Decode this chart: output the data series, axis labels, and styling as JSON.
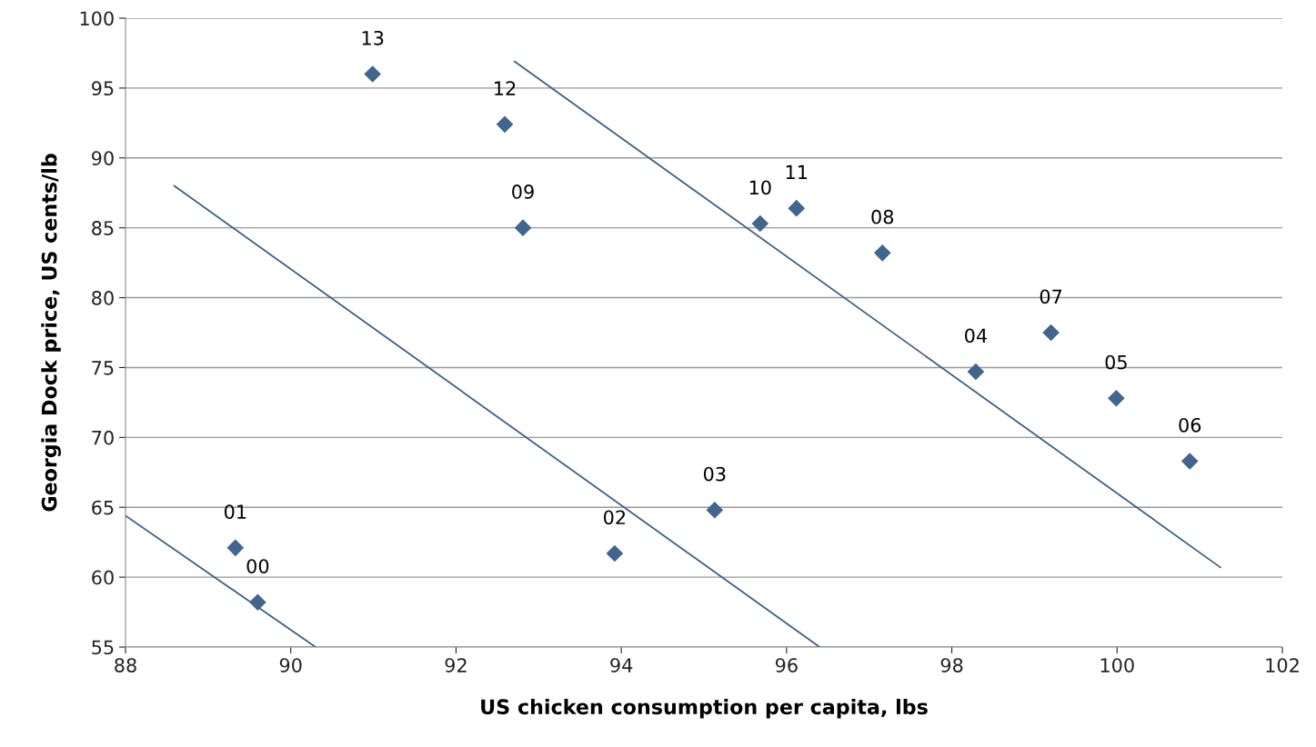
{
  "chart_data": {
    "type": "scatter",
    "xlabel": "US chicken consumption per capita, lbs",
    "ylabel": "Georgia Dock price, US cents/lb",
    "xlim": [
      88,
      102
    ],
    "xticks": [
      88,
      90,
      92,
      94,
      96,
      98,
      100,
      102
    ],
    "ylim": [
      55,
      100
    ],
    "yticks": [
      55,
      60,
      65,
      70,
      75,
      80,
      85,
      90,
      95,
      100
    ],
    "grid": "y",
    "legend": false,
    "marker": "diamond",
    "series": [
      {
        "color": "#41658c",
        "x": [
          89.6,
          89.33,
          93.92,
          95.13,
          98.29,
          99.99,
          100.88,
          99.2,
          97.16,
          92.81,
          95.68,
          96.12,
          92.59,
          90.99
        ],
        "values": [
          58.2,
          62.1,
          61.7,
          64.8,
          74.7,
          72.8,
          68.3,
          77.5,
          83.2,
          85.0,
          85.3,
          86.4,
          92.4,
          96.0
        ]
      },
      {
        "type": "line",
        "color": "#3f6085",
        "marker": "none",
        "x": [
          88.0,
          90.3
        ],
        "values": [
          64.4,
          55.0
        ]
      },
      {
        "type": "line",
        "color": "#3f6085",
        "marker": "none",
        "x": [
          88.59,
          96.4
        ],
        "values": [
          88.0,
          55.0
        ]
      },
      {
        "type": "line",
        "color": "#3f6085",
        "marker": "none",
        "x": [
          92.71,
          101.25
        ],
        "values": [
          96.9,
          60.7
        ]
      }
    ],
    "annotations": [
      {
        "text": "00",
        "x": 89.6,
        "y": 58.2
      },
      {
        "text": "01",
        "x": 89.33,
        "y": 62.1
      },
      {
        "text": "02",
        "x": 93.92,
        "y": 61.7
      },
      {
        "text": "03",
        "x": 95.13,
        "y": 64.8
      },
      {
        "text": "04",
        "x": 98.29,
        "y": 74.7
      },
      {
        "text": "05",
        "x": 99.99,
        "y": 72.8
      },
      {
        "text": "06",
        "x": 100.88,
        "y": 68.3
      },
      {
        "text": "07",
        "x": 99.2,
        "y": 77.5
      },
      {
        "text": "08",
        "x": 97.16,
        "y": 83.2
      },
      {
        "text": "09",
        "x": 92.81,
        "y": 85.0
      },
      {
        "text": "10",
        "x": 95.68,
        "y": 85.3
      },
      {
        "text": "11",
        "x": 96.12,
        "y": 86.4
      },
      {
        "text": "12",
        "x": 92.59,
        "y": 92.4
      },
      {
        "text": "13",
        "x": 90.99,
        "y": 96.0
      }
    ]
  }
}
